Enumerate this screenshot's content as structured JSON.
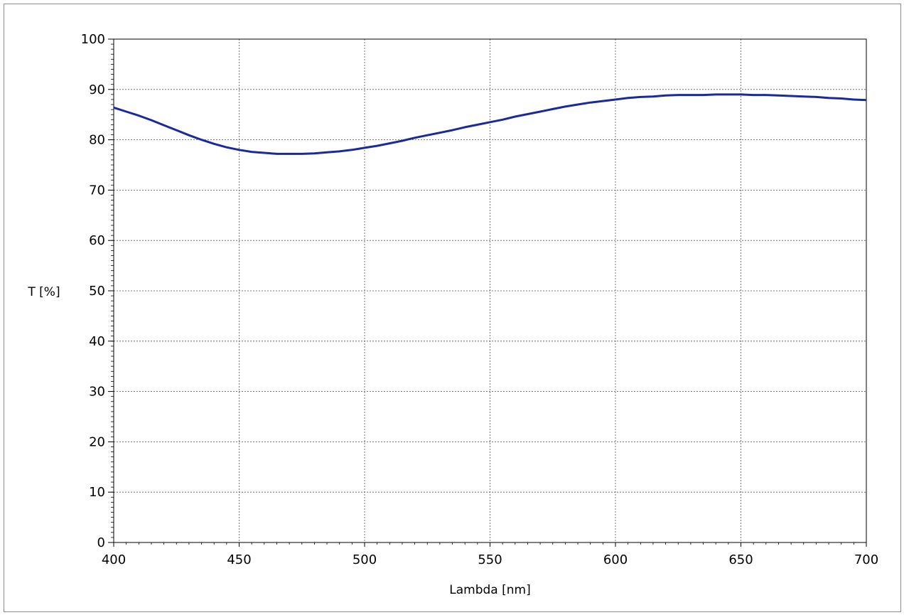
{
  "chart_data": {
    "type": "line",
    "title": "",
    "xlabel": "Lambda [nm]",
    "ylabel": "T [%]",
    "xlim": [
      400,
      700
    ],
    "ylim": [
      0,
      100
    ],
    "x_ticks": [
      "400",
      "450",
      "500",
      "550",
      "600",
      "650",
      "700"
    ],
    "y_ticks": [
      "0",
      "10",
      "20",
      "30",
      "40",
      "50",
      "60",
      "70",
      "80",
      "90",
      "100"
    ],
    "grid": true,
    "series": [
      {
        "color": "#1a2a9c",
        "x": [
          400,
          405,
          410,
          415,
          420,
          425,
          430,
          435,
          440,
          445,
          450,
          455,
          460,
          465,
          470,
          475,
          480,
          485,
          490,
          495,
          500,
          505,
          510,
          515,
          520,
          525,
          530,
          535,
          540,
          545,
          550,
          555,
          560,
          565,
          570,
          575,
          580,
          585,
          590,
          595,
          600,
          605,
          610,
          615,
          620,
          625,
          630,
          635,
          640,
          645,
          650,
          655,
          660,
          665,
          670,
          675,
          680,
          685,
          690,
          695,
          700
        ],
        "y": [
          86.4,
          85.6,
          84.8,
          83.9,
          82.9,
          81.9,
          80.9,
          80.0,
          79.2,
          78.5,
          78.0,
          77.6,
          77.4,
          77.2,
          77.2,
          77.2,
          77.3,
          77.5,
          77.7,
          78.0,
          78.4,
          78.8,
          79.3,
          79.8,
          80.4,
          80.9,
          81.4,
          81.9,
          82.5,
          83.0,
          83.5,
          84.0,
          84.6,
          85.1,
          85.6,
          86.1,
          86.6,
          87.0,
          87.4,
          87.7,
          88.0,
          88.3,
          88.5,
          88.6,
          88.8,
          88.9,
          88.9,
          88.9,
          89.0,
          89.0,
          89.0,
          88.9,
          88.9,
          88.8,
          88.7,
          88.6,
          88.5,
          88.3,
          88.2,
          88.0,
          87.9
        ]
      }
    ]
  }
}
